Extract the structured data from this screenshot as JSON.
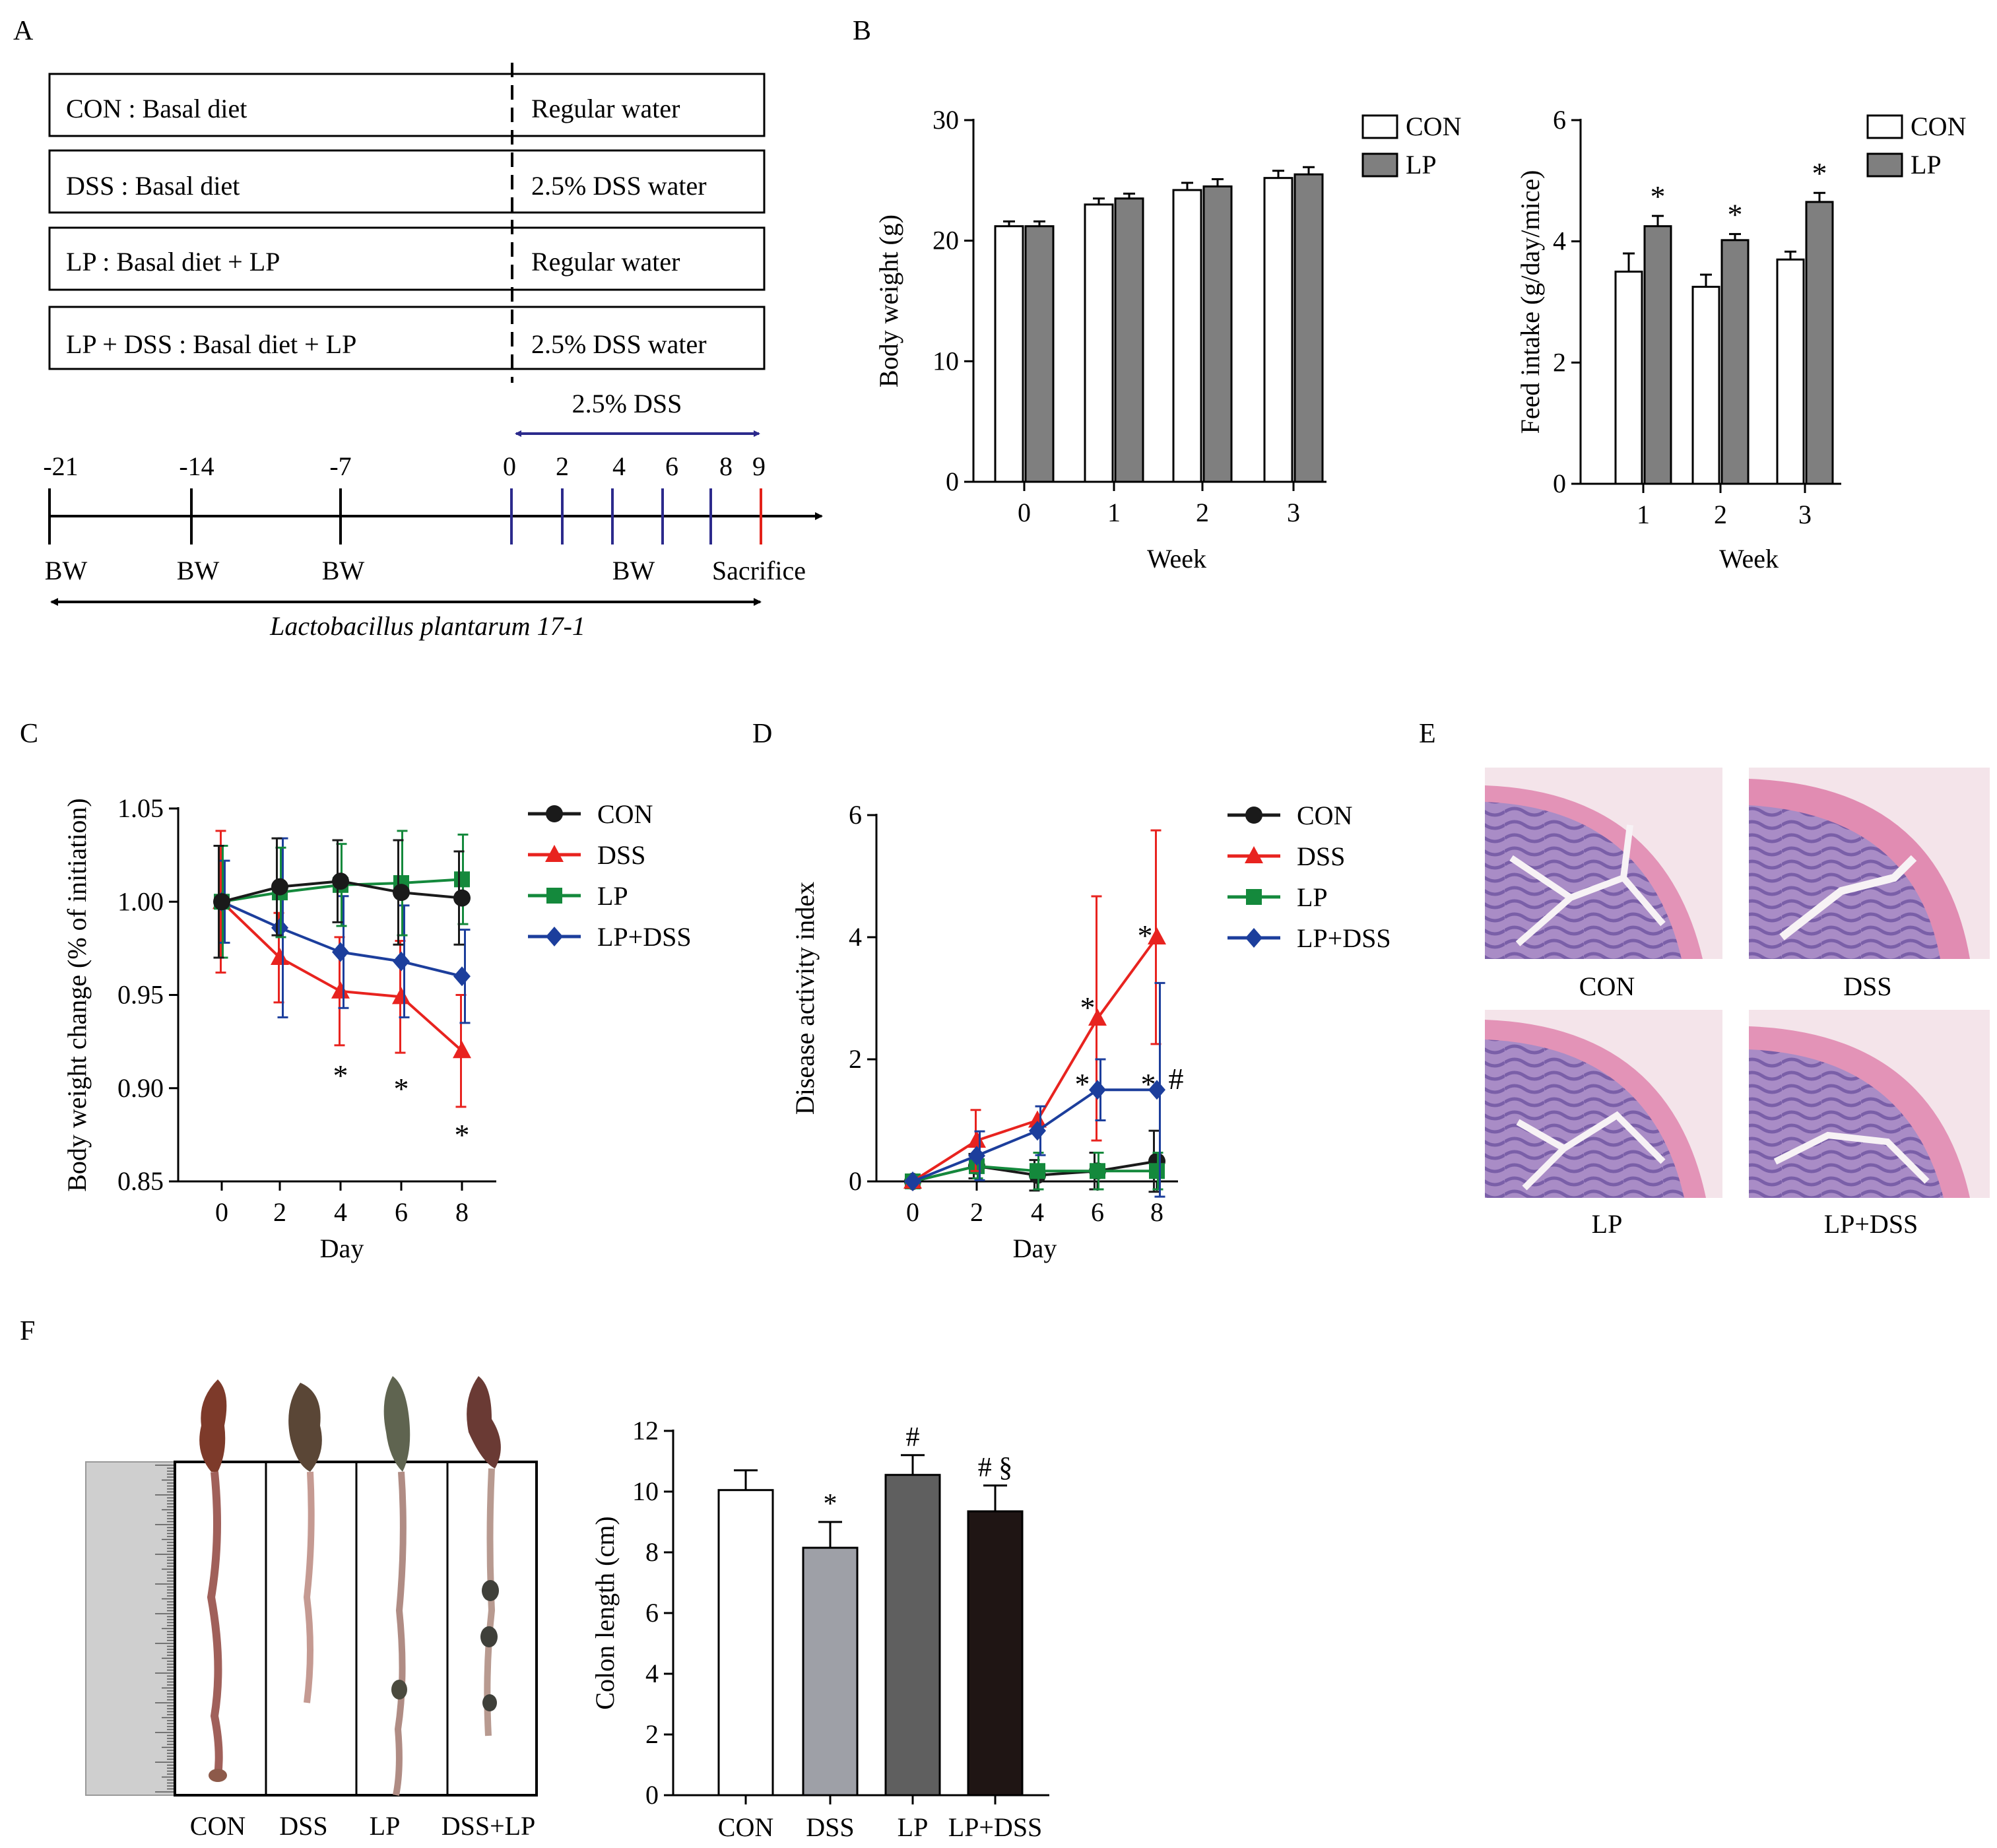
{
  "panel_labels": {
    "a": "A",
    "b": "B",
    "c": "C",
    "d": "D",
    "e": "E",
    "f": "F"
  },
  "design": {
    "rows": [
      {
        "group": "CON :  Basal diet",
        "water": "Regular water"
      },
      {
        "group": "DSS :  Basal diet",
        "water": "2.5% DSS water"
      },
      {
        "group": "LP :  Basal diet +  LP",
        "water": "Regular water"
      },
      {
        "group": "LP + DSS :  Basal diet +  LP",
        "water": "2.5% DSS water"
      }
    ],
    "dss_label": "2.5% DSS",
    "timeline_top": [
      "-21",
      "-14",
      "-7",
      "0",
      "2",
      "4",
      "6",
      "8",
      "9"
    ],
    "timeline_bottom": [
      "BW",
      "BW",
      "BW",
      "BW",
      "Sacrifice"
    ],
    "species": "Lactobacillus plantarum 17-1"
  },
  "histology": {
    "labels": [
      "CON",
      "DSS",
      "LP",
      "LP+DSS"
    ]
  },
  "photo": {
    "labels": [
      "CON",
      "DSS",
      "LP",
      "DSS+LP"
    ]
  },
  "colors": {
    "con": "#1a1a1a",
    "dss": "#e8231f",
    "lp": "#14893c",
    "lpdss": "#1c3e9c",
    "timeline_blue": "#2c2a8c",
    "timeline_red": "#e32119",
    "bar_grey": "#7f7f7f"
  },
  "chart_data": [
    {
      "id": "body_weight",
      "type": "bar",
      "ylabel": "Body weight (g)",
      "xlabel": "Week",
      "categories": [
        "0",
        "1",
        "2",
        "3"
      ],
      "ylim": [
        0,
        30
      ],
      "yticks": [
        "0",
        "10",
        "20",
        "30"
      ],
      "series": [
        {
          "name": "CON",
          "values": [
            21.2,
            23.0,
            24.2,
            25.2
          ],
          "errors": [
            0.4,
            0.5,
            0.6,
            0.6
          ]
        },
        {
          "name": "LP",
          "values": [
            21.2,
            23.5,
            24.5,
            25.5
          ],
          "errors": [
            0.4,
            0.4,
            0.6,
            0.6
          ]
        }
      ],
      "legend": [
        "CON",
        "LP"
      ]
    },
    {
      "id": "feed_intake",
      "type": "bar",
      "ylabel": "Feed intake (g/day/mice)",
      "xlabel": "Week",
      "categories": [
        "1",
        "2",
        "3"
      ],
      "ylim": [
        0,
        6
      ],
      "yticks": [
        "0",
        "2",
        "4",
        "6"
      ],
      "series": [
        {
          "name": "CON",
          "values": [
            3.5,
            3.25,
            3.7
          ],
          "errors": [
            0.3,
            0.2,
            0.13
          ]
        },
        {
          "name": "LP",
          "values": [
            4.25,
            4.02,
            4.65
          ],
          "errors": [
            0.17,
            0.1,
            0.15
          ]
        }
      ],
      "annotations": [
        "*",
        "*",
        "*"
      ],
      "legend": [
        "CON",
        "LP"
      ]
    },
    {
      "id": "body_weight_change",
      "type": "line",
      "ylabel": "Body weight change (% of initiation)",
      "xlabel": "Day",
      "x": [
        0,
        2,
        4,
        6,
        8
      ],
      "ylim": [
        0.85,
        1.05
      ],
      "yticks": [
        "0.85",
        "0.90",
        "0.95",
        "1.00",
        "1.05"
      ],
      "xticks": [
        "0",
        "2",
        "4",
        "6",
        "8"
      ],
      "series": [
        {
          "name": "CON",
          "values": [
            1.0,
            1.008,
            1.011,
            1.005,
            1.002
          ],
          "errors": [
            0.03,
            0.026,
            0.022,
            0.028,
            0.025
          ]
        },
        {
          "name": "DSS",
          "values": [
            1.0,
            0.97,
            0.952,
            0.949,
            0.92
          ],
          "errors": [
            0.038,
            0.024,
            0.029,
            0.03,
            0.03
          ]
        },
        {
          "name": "LP",
          "values": [
            1.0,
            1.005,
            1.009,
            1.01,
            1.012
          ],
          "errors": [
            0.03,
            0.024,
            0.022,
            0.028,
            0.024
          ]
        },
        {
          "name": "LP+DSS",
          "values": [
            1.0,
            0.986,
            0.973,
            0.968,
            0.96
          ],
          "errors": [
            0.022,
            0.048,
            0.03,
            0.03,
            0.025
          ]
        }
      ],
      "annotations": [
        "*",
        "*",
        "*"
      ]
    },
    {
      "id": "disease_activity_index",
      "type": "line",
      "ylabel": "Disease activity index",
      "xlabel": "Day",
      "x": [
        0,
        2,
        4,
        6,
        8
      ],
      "ylim": [
        0,
        6
      ],
      "yticks": [
        "0",
        "2",
        "4",
        "6"
      ],
      "xticks": [
        "0",
        "2",
        "4",
        "6",
        "8"
      ],
      "series": [
        {
          "name": "CON",
          "values": [
            0,
            0.25,
            0.1,
            0.17,
            0.33
          ],
          "errors": [
            0,
            0.2,
            0.25,
            0.3,
            0.5
          ]
        },
        {
          "name": "DSS",
          "values": [
            0,
            0.67,
            1.0,
            2.67,
            4.0
          ],
          "errors": [
            0,
            0.5,
            0,
            2.0,
            1.75
          ]
        },
        {
          "name": "LP",
          "values": [
            0,
            0.25,
            0.17,
            0.17,
            0.17
          ],
          "errors": [
            0,
            0.2,
            0.3,
            0.3,
            0.3
          ]
        },
        {
          "name": "LP+DSS",
          "values": [
            0,
            0.42,
            0.83,
            1.5,
            1.5
          ],
          "errors": [
            0,
            0.4,
            0.4,
            0.5,
            1.75
          ]
        }
      ],
      "annotations": [
        "*",
        "*",
        "*",
        "*",
        "#"
      ]
    },
    {
      "id": "colon_length",
      "type": "bar",
      "ylabel": "Colon length (cm)",
      "categories": [
        "CON",
        "DSS",
        "LP",
        "LP+DSS"
      ],
      "ylim": [
        0,
        12
      ],
      "yticks": [
        "0",
        "2",
        "4",
        "6",
        "8",
        "10",
        "12"
      ],
      "values": [
        10.05,
        8.15,
        10.55,
        9.35
      ],
      "errors": [
        0.65,
        0.85,
        0.65,
        0.85
      ],
      "colors": [
        "#ffffff",
        "#9ea0a7",
        "#5f5f5f",
        "#1f1514"
      ],
      "annotations": [
        "*",
        "#",
        "# §"
      ]
    }
  ]
}
